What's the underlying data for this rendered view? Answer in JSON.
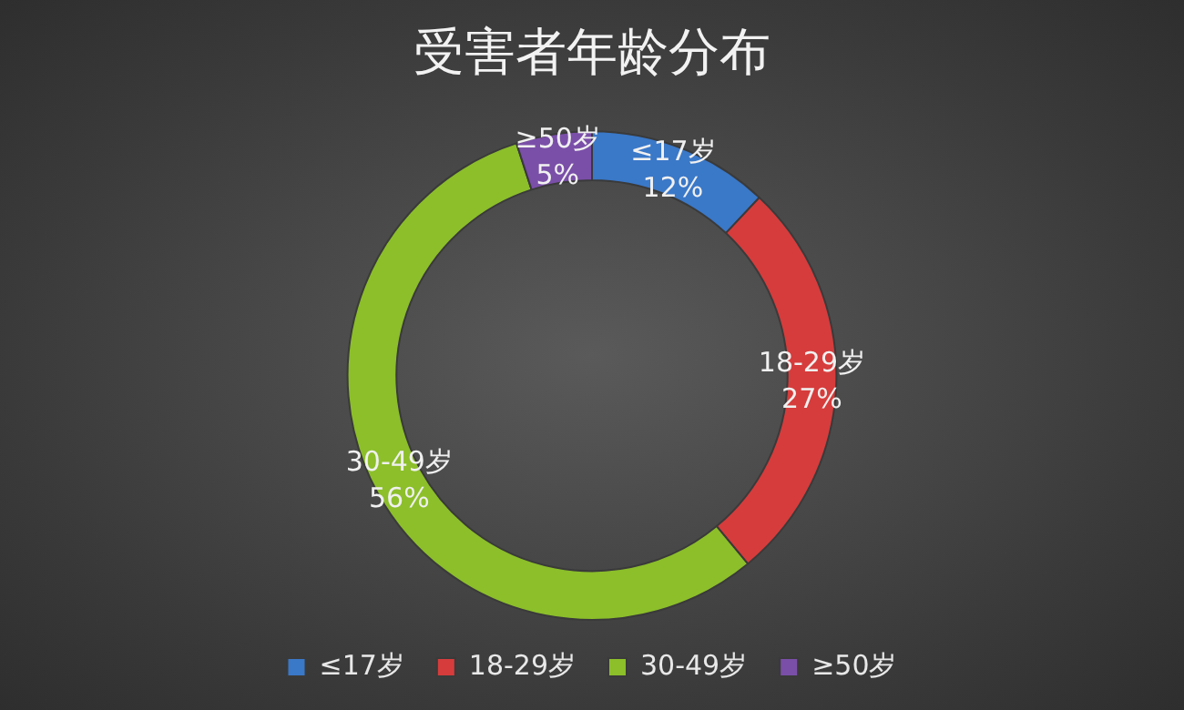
{
  "chart_data": {
    "type": "donut",
    "title": "受害者年龄分布",
    "categories": [
      "≤17岁",
      "18-29岁",
      "30-49岁",
      "≥50岁"
    ],
    "values": [
      12,
      27,
      56,
      5
    ],
    "value_labels": [
      "12%",
      "27%",
      "56%",
      "5%"
    ],
    "colors": [
      "#3a78c8",
      "#d63c3c",
      "#8cbf2a",
      "#7a4fa8"
    ],
    "legend": "bottom"
  }
}
